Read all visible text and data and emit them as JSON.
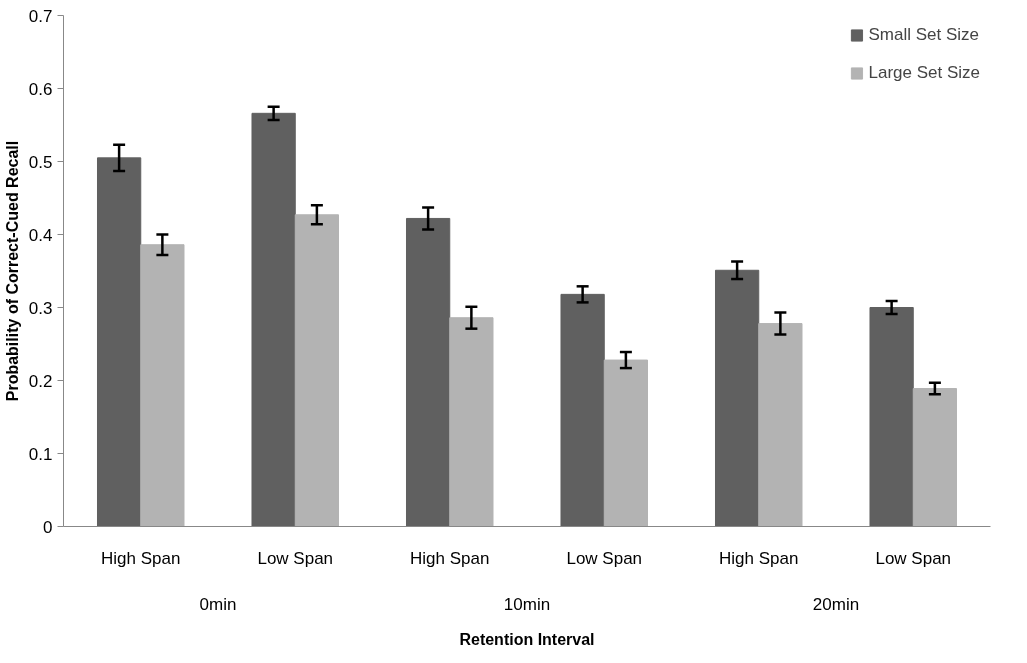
{
  "chart_data": {
    "type": "bar",
    "xlabel": "Retention Interval",
    "ylabel": "Probability of Correct-Cued Recall",
    "categories": [
      "High Span",
      "Low Span",
      "High Span",
      "Low Span",
      "High Span",
      "Low Span"
    ],
    "annotations": [
      "0min",
      "10min",
      "20min"
    ],
    "series": [
      {
        "name": "Small Set Size",
        "color": "#606060",
        "values": [
          0.505,
          0.566,
          0.422,
          0.318,
          0.351,
          0.3
        ],
        "errors": [
          0.018,
          0.009,
          0.015,
          0.011,
          0.012,
          0.009
        ]
      },
      {
        "name": "Large Set Size",
        "color": "#b3b3b3",
        "values": [
          0.386,
          0.427,
          0.286,
          0.228,
          0.278,
          0.189
        ],
        "errors": [
          0.014,
          0.013,
          0.015,
          0.011,
          0.015,
          0.008
        ]
      }
    ],
    "ylim": [
      0,
      0.7
    ],
    "yticks": [
      0,
      0.1,
      0.2,
      0.3,
      0.4,
      0.5,
      0.6,
      0.7
    ],
    "grid": false,
    "legend": "top right"
  }
}
